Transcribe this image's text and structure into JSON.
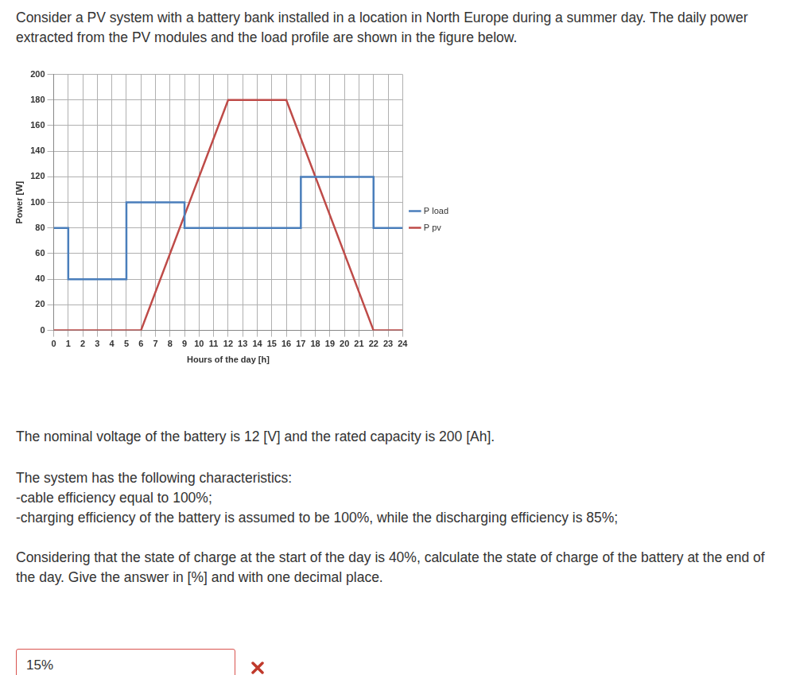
{
  "question": {
    "intro": "Consider a PV system with a battery bank installed in a location in North Europe during a summer day. The daily power extracted from the PV modules and the load profile are shown in the figure below.",
    "battery": "The nominal voltage of the battery is 12 [V] and the rated capacity is 200 [Ah].",
    "characteristics_title": "The system has the following characteristics:",
    "characteristics": [
      "-cable efficiency equal to 100%;",
      "-charging efficiency of the battery is assumed to be 100%, while the discharging efficiency is 85%;"
    ],
    "task": "Considering that the state of charge at the start of the day is 40%, calculate the state of charge of the battery at the end of the day. Give the answer in [%] and with one decimal place.",
    "answer": "15%"
  },
  "chart_data": {
    "type": "line",
    "x_label": "Hours of the day [h]",
    "y_label": "Power [W]",
    "series": [
      {
        "name": "P load",
        "color": "#4a7ebb",
        "line_style": "step",
        "x": [
          0,
          1,
          5,
          9,
          17,
          22,
          24
        ],
        "values": [
          80,
          40,
          100,
          80,
          120,
          80,
          80
        ]
      },
      {
        "name": "P pv",
        "color": "#be4b48",
        "line_style": "solid",
        "x": [
          0,
          6,
          12,
          16,
          22,
          24
        ],
        "values": [
          0,
          0,
          180,
          180,
          0,
          0
        ]
      }
    ],
    "xlim": [
      0,
      24
    ],
    "xticks": [
      0,
      1,
      2,
      3,
      4,
      5,
      6,
      7,
      8,
      9,
      10,
      11,
      12,
      13,
      14,
      15,
      16,
      17,
      18,
      19,
      20,
      21,
      22,
      23,
      24
    ],
    "ylim": [
      0,
      200
    ],
    "yticks": [
      0,
      20,
      40,
      60,
      80,
      100,
      120,
      140,
      160,
      180,
      200
    ],
    "grid": true,
    "legend": "right"
  }
}
